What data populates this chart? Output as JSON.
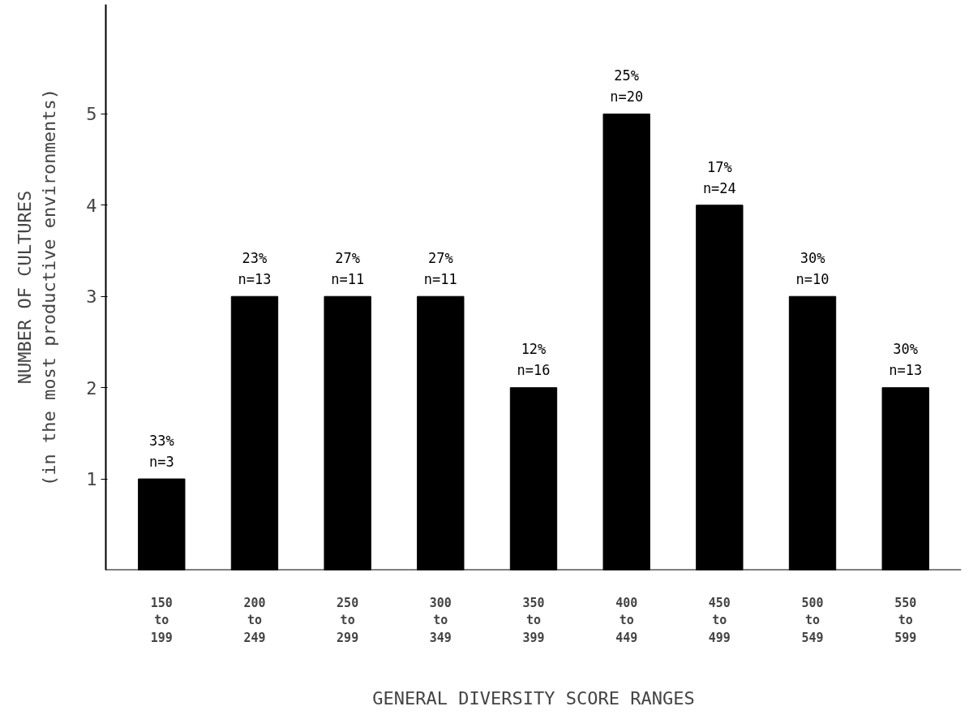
{
  "chart_data": {
    "type": "bar",
    "xlabel": "GENERAL DIVERSITY SCORE RANGES",
    "ylabel": "NUMBER OF CULTURES\n(in the most productive environments)",
    "categories": [
      "150\nto\n199",
      "200\nto\n249",
      "250\nto\n299",
      "300\nto\n349",
      "350\nto\n399",
      "400\nto\n449",
      "450\nto\n499",
      "500\nto\n549",
      "550\nto\n599"
    ],
    "values": [
      1,
      3,
      3,
      3,
      2,
      5,
      4,
      3,
      2
    ],
    "annotations": [
      {
        "text": "33%\nn=3",
        "x": "150\nto\n199",
        "y": 1
      },
      {
        "text": "23%\nn=13",
        "x": "200\nto\n249",
        "y": 3
      },
      {
        "text": "27%\nn=11",
        "x": "250\nto\n299",
        "y": 3
      },
      {
        "text": "27%\nn=11",
        "x": "300\nto\n349",
        "y": 3
      },
      {
        "text": "12%\nn=16",
        "x": "350\nto\n399",
        "y": 2
      },
      {
        "text": "25%\nn=20",
        "x": "400\nto\n449",
        "y": 5
      },
      {
        "text": "17%\nn=24",
        "x": "450\nto\n499",
        "y": 4
      },
      {
        "text": "30%\nn=10",
        "x": "500\nto\n549",
        "y": 3
      },
      {
        "text": "30%\nn=13",
        "x": "550\nto\n599",
        "y": 2
      }
    ],
    "color": "#000000",
    "ylim": [
      0,
      6.2
    ],
    "yticks": [
      1,
      2,
      3,
      4,
      5
    ],
    "grid": false
  }
}
